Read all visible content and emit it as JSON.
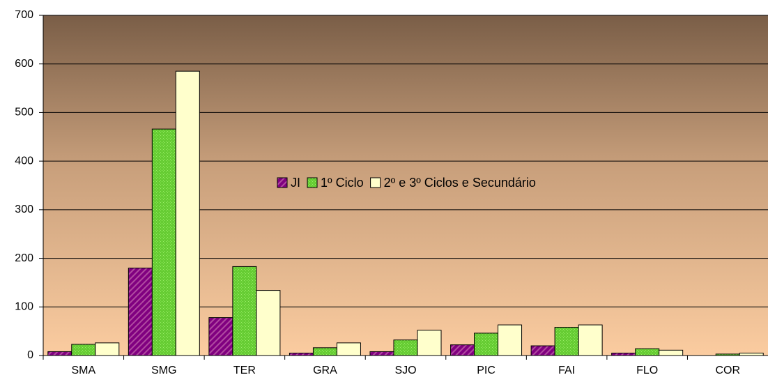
{
  "chart_data": {
    "type": "bar",
    "categories": [
      "SMA",
      "SMG",
      "TER",
      "GRA",
      "SJO",
      "PIC",
      "FAI",
      "FLO",
      "COR"
    ],
    "series": [
      {
        "name": "JI",
        "color": "#800080",
        "values": [
          8,
          180,
          78,
          5,
          8,
          22,
          20,
          5,
          0
        ]
      },
      {
        "name": "1º Ciclo",
        "color": "#66cc33",
        "values": [
          23,
          466,
          183,
          16,
          32,
          46,
          58,
          14,
          3
        ]
      },
      {
        "name": "2º e 3º Ciclos e Secundário",
        "color": "#ffffcc",
        "values": [
          26,
          585,
          134,
          26,
          52,
          63,
          63,
          11,
          5
        ]
      }
    ],
    "ylim": [
      0,
      700
    ],
    "yticks": [
      0,
      100,
      200,
      300,
      400,
      500,
      600,
      700
    ],
    "grid": true,
    "legend": "center"
  }
}
